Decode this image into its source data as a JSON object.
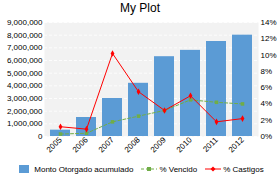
{
  "chart_data": {
    "type": "bar",
    "title": "My Plot",
    "categories": [
      "2005",
      "2006",
      "2007",
      "2008",
      "2009",
      "2010",
      "2011",
      "2012"
    ],
    "series": [
      {
        "name": "Monto Otorgado acumulado",
        "type": "bar",
        "color": "#5B9BD5",
        "values": [
          500000,
          1500000,
          3000000,
          4200000,
          6300000,
          6800000,
          7500000,
          8000000
        ]
      },
      {
        "name": "% Vencido",
        "type": "line",
        "axis": "y2",
        "color": "#70AD47",
        "marker": "square",
        "line_style": "dashed",
        "values": [
          0.3,
          0.4,
          1.8,
          2.5,
          3.2,
          4.5,
          4.2,
          4.0
        ]
      },
      {
        "name": "% Castigos",
        "type": "line",
        "axis": "y2",
        "color": "#FF0000",
        "marker": "diamond",
        "line_style": "solid",
        "values": [
          1.2,
          0.9,
          10.2,
          5.5,
          3.2,
          5.0,
          1.8,
          2.2
        ]
      }
    ],
    "ylim": [
      0,
      9000000
    ],
    "yticks": [
      0,
      {
        "value": 1000000,
        "label": "1,000,000"
      },
      {
        "value": 2000000,
        "label": "2,000,000"
      },
      {
        "value": 3000000,
        "label": "3,000,000"
      },
      {
        "value": 4000000,
        "label": "4,000,000"
      },
      {
        "value": 5000000,
        "label": "5,000,000"
      },
      {
        "value": 6000000,
        "label": "6,000,000"
      },
      {
        "value": 7000000,
        "label": "7,000,000"
      },
      {
        "value": 8000000,
        "label": "8,000,000"
      },
      {
        "value": 9000000,
        "label": "9,000,000"
      }
    ],
    "y2lim": [
      0,
      14
    ],
    "y2ticks": [
      {
        "value": 0,
        "label": "0%"
      },
      {
        "value": 2,
        "label": "2%"
      },
      {
        "value": 4,
        "label": "4%"
      },
      {
        "value": 6,
        "label": "6%"
      },
      {
        "value": 8,
        "label": "8%"
      },
      {
        "value": 10,
        "label": "10%"
      },
      {
        "value": 12,
        "label": "12%"
      },
      {
        "value": 14,
        "label": "14%"
      }
    ],
    "grid": true,
    "legend": "bottom"
  }
}
